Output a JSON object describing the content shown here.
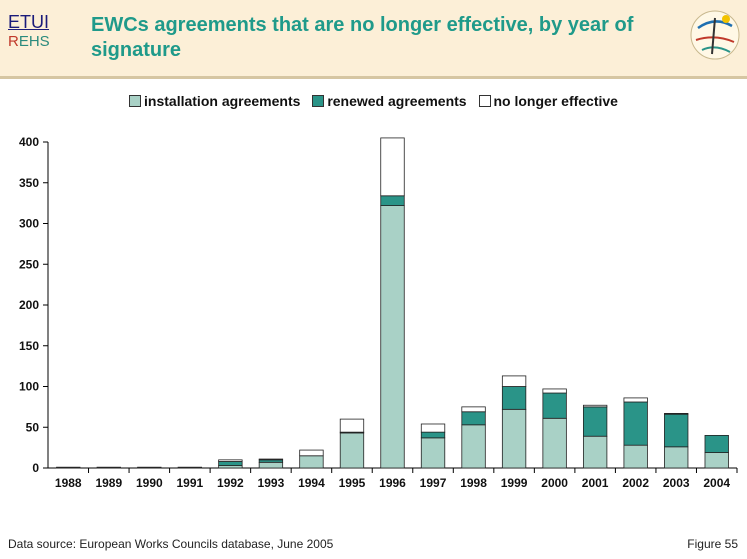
{
  "header": {
    "logo_top": "ETUI",
    "logo_bottom_r": "R",
    "logo_bottom_rest": "EHS",
    "title": "EWCs agreements that are no longer effective, by year of signature"
  },
  "colors": {
    "installation": "#a9d1c6",
    "renewed": "#2a9488",
    "no_longer": "#ffffff",
    "title": "#1f9a8a",
    "header_bg": "#fcefd7"
  },
  "footer": {
    "source": "Data source: European Works Councils database, June 2005",
    "figure": "Figure 55"
  },
  "chart_data": {
    "type": "bar",
    "stacked": true,
    "categories": [
      "1988",
      "1989",
      "1990",
      "1991",
      "1992",
      "1993",
      "1994",
      "1995",
      "1996",
      "1997",
      "1998",
      "1999",
      "2000",
      "2001",
      "2002",
      "2003",
      "2004"
    ],
    "series": [
      {
        "name": "installation agreements",
        "color": "#a9d1c6",
        "values": [
          0,
          0,
          0,
          0,
          3,
          7,
          15,
          43,
          322,
          37,
          53,
          72,
          61,
          39,
          28,
          26,
          19
        ]
      },
      {
        "name": "renewed agreements",
        "color": "#2a9488",
        "values": [
          0,
          0,
          0,
          0,
          5,
          3,
          0,
          1,
          12,
          7,
          16,
          28,
          31,
          36,
          53,
          40,
          21
        ]
      },
      {
        "name": "no longer effective",
        "color": "#ffffff",
        "values": [
          1,
          1,
          1,
          1,
          2,
          1,
          7,
          16,
          71,
          10,
          6,
          13,
          5,
          2,
          5,
          1,
          0
        ]
      }
    ],
    "ylim": [
      0,
      400
    ],
    "yticks": [
      0,
      50,
      100,
      150,
      200,
      250,
      300,
      350,
      400
    ],
    "legend_position": "top-center",
    "grid": false
  }
}
